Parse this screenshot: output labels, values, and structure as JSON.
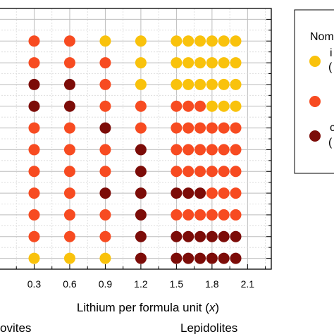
{
  "chart_data": {
    "type": "scatter",
    "x_label_parts": [
      "Lithium per formula unit (",
      "x",
      ")"
    ],
    "x_ticks": [
      0.3,
      0.6,
      0.9,
      1.2,
      1.5,
      1.8,
      2.1
    ],
    "x_tick_labels": [
      "0.3",
      "0.6",
      "0.9",
      "1.2",
      "1.5",
      "1.8",
      "2.1"
    ],
    "xlim": [
      0.0,
      2.3
    ],
    "ylim": [
      0.5,
      12.5
    ],
    "grid": true,
    "legend": {
      "placement": "right",
      "title_fragment": "Nom",
      "entry_fragments": [
        "i",
        "(",
        "",
        "c",
        "("
      ]
    },
    "group_labels": [
      "ovites",
      "Lepidolites"
    ],
    "colors": {
      "yellow": "#f9c20c",
      "orange": "#f74b21",
      "darkred": "#7c0c08"
    },
    "series": [
      {
        "color_key": "yellow",
        "points": [
          {
            "x": 0.9,
            "y": 11
          },
          {
            "x": 1.2,
            "y": 11
          },
          {
            "x": 1.5,
            "y": 11
          },
          {
            "x": 1.6,
            "y": 11
          },
          {
            "x": 1.7,
            "y": 11
          },
          {
            "x": 1.8,
            "y": 11
          },
          {
            "x": 1.9,
            "y": 11
          },
          {
            "x": 2.0,
            "y": 11
          },
          {
            "x": 1.2,
            "y": 10
          },
          {
            "x": 1.5,
            "y": 10
          },
          {
            "x": 1.6,
            "y": 10
          },
          {
            "x": 1.7,
            "y": 10
          },
          {
            "x": 1.8,
            "y": 10
          },
          {
            "x": 1.9,
            "y": 10
          },
          {
            "x": 2.0,
            "y": 10
          },
          {
            "x": 1.2,
            "y": 9
          },
          {
            "x": 1.5,
            "y": 9
          },
          {
            "x": 1.6,
            "y": 9
          },
          {
            "x": 1.7,
            "y": 9
          },
          {
            "x": 1.8,
            "y": 9
          },
          {
            "x": 1.9,
            "y": 9
          },
          {
            "x": 2.0,
            "y": 9
          },
          {
            "x": 1.8,
            "y": 8
          },
          {
            "x": 1.9,
            "y": 8
          },
          {
            "x": 2.0,
            "y": 8
          },
          {
            "x": 0.3,
            "y": 1
          },
          {
            "x": 0.6,
            "y": 1
          },
          {
            "x": 0.9,
            "y": 1
          }
        ]
      },
      {
        "color_key": "orange",
        "points": [
          {
            "x": 0.3,
            "y": 11
          },
          {
            "x": 0.6,
            "y": 11
          },
          {
            "x": 0.3,
            "y": 10
          },
          {
            "x": 0.6,
            "y": 10
          },
          {
            "x": 0.9,
            "y": 10
          },
          {
            "x": 0.9,
            "y": 9
          },
          {
            "x": 0.9,
            "y": 8
          },
          {
            "x": 1.2,
            "y": 8
          },
          {
            "x": 1.5,
            "y": 8
          },
          {
            "x": 1.6,
            "y": 8
          },
          {
            "x": 1.7,
            "y": 8
          },
          {
            "x": 0.3,
            "y": 7
          },
          {
            "x": 0.6,
            "y": 7
          },
          {
            "x": 1.2,
            "y": 7
          },
          {
            "x": 1.5,
            "y": 7
          },
          {
            "x": 1.6,
            "y": 7
          },
          {
            "x": 1.7,
            "y": 7
          },
          {
            "x": 1.8,
            "y": 7
          },
          {
            "x": 1.9,
            "y": 7
          },
          {
            "x": 2.0,
            "y": 7
          },
          {
            "x": 0.3,
            "y": 6
          },
          {
            "x": 0.6,
            "y": 6
          },
          {
            "x": 0.9,
            "y": 6
          },
          {
            "x": 1.5,
            "y": 6
          },
          {
            "x": 1.6,
            "y": 6
          },
          {
            "x": 1.7,
            "y": 6
          },
          {
            "x": 1.8,
            "y": 6
          },
          {
            "x": 1.9,
            "y": 6
          },
          {
            "x": 2.0,
            "y": 6
          },
          {
            "x": 0.3,
            "y": 5
          },
          {
            "x": 0.6,
            "y": 5
          },
          {
            "x": 0.9,
            "y": 5
          },
          {
            "x": 1.5,
            "y": 5
          },
          {
            "x": 1.6,
            "y": 5
          },
          {
            "x": 1.7,
            "y": 5
          },
          {
            "x": 1.8,
            "y": 5
          },
          {
            "x": 1.9,
            "y": 5
          },
          {
            "x": 2.0,
            "y": 5
          },
          {
            "x": 0.3,
            "y": 4
          },
          {
            "x": 0.6,
            "y": 4
          },
          {
            "x": 1.8,
            "y": 4
          },
          {
            "x": 1.9,
            "y": 4
          },
          {
            "x": 2.0,
            "y": 4
          },
          {
            "x": 0.3,
            "y": 3
          },
          {
            "x": 0.6,
            "y": 3
          },
          {
            "x": 0.9,
            "y": 3
          },
          {
            "x": 1.5,
            "y": 3
          },
          {
            "x": 1.6,
            "y": 3
          },
          {
            "x": 1.7,
            "y": 3
          },
          {
            "x": 1.8,
            "y": 3
          },
          {
            "x": 1.9,
            "y": 3
          },
          {
            "x": 2.0,
            "y": 3
          },
          {
            "x": 0.3,
            "y": 2
          },
          {
            "x": 0.6,
            "y": 2
          },
          {
            "x": 0.9,
            "y": 2
          }
        ]
      },
      {
        "color_key": "darkred",
        "points": [
          {
            "x": 0.3,
            "y": 9
          },
          {
            "x": 0.6,
            "y": 9
          },
          {
            "x": 0.3,
            "y": 8
          },
          {
            "x": 0.6,
            "y": 8
          },
          {
            "x": 0.9,
            "y": 7
          },
          {
            "x": 1.2,
            "y": 6
          },
          {
            "x": 1.2,
            "y": 5
          },
          {
            "x": 0.9,
            "y": 4
          },
          {
            "x": 1.2,
            "y": 4
          },
          {
            "x": 1.5,
            "y": 4
          },
          {
            "x": 1.6,
            "y": 4
          },
          {
            "x": 1.7,
            "y": 4
          },
          {
            "x": 1.2,
            "y": 3
          },
          {
            "x": 1.2,
            "y": 2
          },
          {
            "x": 1.5,
            "y": 2
          },
          {
            "x": 1.6,
            "y": 2
          },
          {
            "x": 1.7,
            "y": 2
          },
          {
            "x": 1.8,
            "y": 2
          },
          {
            "x": 1.9,
            "y": 2
          },
          {
            "x": 2.0,
            "y": 2
          },
          {
            "x": 1.2,
            "y": 1
          },
          {
            "x": 1.5,
            "y": 1
          },
          {
            "x": 1.6,
            "y": 1
          },
          {
            "x": 1.7,
            "y": 1
          },
          {
            "x": 1.8,
            "y": 1
          },
          {
            "x": 1.9,
            "y": 1
          },
          {
            "x": 2.0,
            "y": 1
          }
        ]
      }
    ]
  }
}
